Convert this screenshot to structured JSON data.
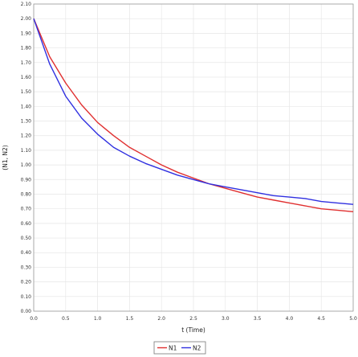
{
  "chart_data": {
    "type": "line",
    "xlabel": "t (Time)",
    "ylabel": "(N1, N2)",
    "xlim": [
      0,
      5
    ],
    "ylim": [
      0,
      2.1
    ],
    "x_ticks": [
      "0.0",
      "0.5",
      "1.0",
      "1.5",
      "2.0",
      "2.5",
      "3.0",
      "3.5",
      "4.0",
      "4.5",
      "5.0"
    ],
    "y_ticks": [
      "0.00",
      "0.10",
      "0.20",
      "0.30",
      "0.40",
      "0.50",
      "0.60",
      "0.70",
      "0.80",
      "0.90",
      "1.00",
      "1.10",
      "1.20",
      "1.30",
      "1.40",
      "1.50",
      "1.60",
      "1.70",
      "1.80",
      "1.90",
      "2.00",
      "2.10"
    ],
    "grid": true,
    "legend_position": "bottom-center",
    "x": [
      0,
      0.25,
      0.5,
      0.75,
      1.0,
      1.25,
      1.5,
      1.75,
      2.0,
      2.25,
      2.5,
      2.75,
      3.0,
      3.25,
      3.5,
      3.75,
      4.0,
      4.25,
      4.5,
      4.75,
      5.0
    ],
    "series": [
      {
        "name": "N1",
        "color": "#e03030",
        "values": [
          2.0,
          1.74,
          1.56,
          1.41,
          1.29,
          1.2,
          1.12,
          1.06,
          1.0,
          0.95,
          0.91,
          0.87,
          0.84,
          0.81,
          0.78,
          0.76,
          0.74,
          0.72,
          0.7,
          0.69,
          0.68
        ]
      },
      {
        "name": "N2",
        "color": "#3030e0",
        "values": [
          2.0,
          1.69,
          1.47,
          1.32,
          1.21,
          1.12,
          1.06,
          1.01,
          0.97,
          0.93,
          0.9,
          0.87,
          0.85,
          0.83,
          0.81,
          0.79,
          0.78,
          0.77,
          0.75,
          0.74,
          0.73
        ]
      }
    ]
  }
}
